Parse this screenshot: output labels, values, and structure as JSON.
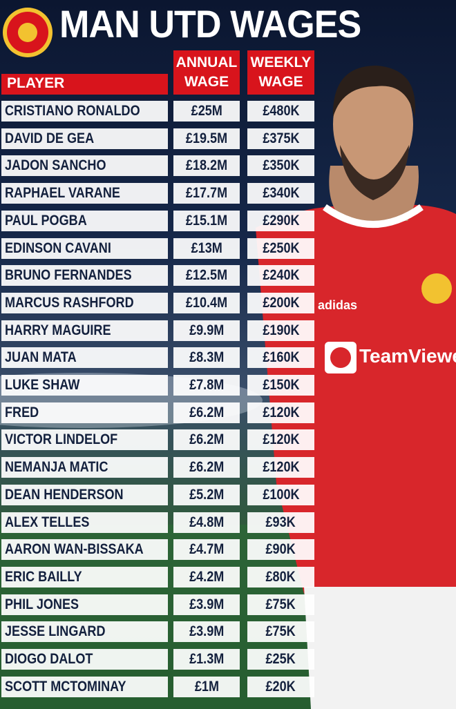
{
  "title": "MAN UTD WAGES",
  "table": {
    "header": [
      "PLAYER",
      "ANNUAL WAGE",
      "WEEKLY WAGE"
    ],
    "rows": [
      [
        "CRISTIANO RONALDO",
        "£25M",
        "£480K"
      ],
      [
        "DAVID DE GEA",
        "£19.5M",
        "£375K"
      ],
      [
        "JADON SANCHO",
        "£18.2M",
        "£350K"
      ],
      [
        "RAPHAEL VARANE",
        "£17.7M",
        "£340K"
      ],
      [
        "PAUL POGBA",
        "£15.1M",
        "£290K"
      ],
      [
        "EDINSON CAVANI",
        "£13M",
        "£250K"
      ],
      [
        "BRUNO FERNANDES",
        "£12.5M",
        "£240K"
      ],
      [
        "MARCUS RASHFORD",
        "£10.4M",
        "£200K"
      ],
      [
        "HARRY MAGUIRE",
        "£9.9M",
        "£190K"
      ],
      [
        "JUAN MATA",
        "£8.3M",
        "£160K"
      ],
      [
        "LUKE SHAW",
        "£7.8M",
        "£150K"
      ],
      [
        "FRED",
        "£6.2M",
        "£120K"
      ],
      [
        "VICTOR LINDELOF",
        "£6.2M",
        "£120K"
      ],
      [
        "NEMANJA MATIC",
        "£6.2M",
        "£120K"
      ],
      [
        "DEAN HENDERSON",
        "£5.2M",
        "£100K"
      ],
      [
        "ALEX TELLES",
        "£4.8M",
        "£93K"
      ],
      [
        "AARON WAN-BISSAKA",
        "£4.7M",
        "£90K"
      ],
      [
        "ERIC BAILLY",
        "£4.2M",
        "£80K"
      ],
      [
        "PHIL JONES",
        "£3.9M",
        "£75K"
      ],
      [
        "JESSE LINGARD",
        "£3.9M",
        "£75K"
      ],
      [
        "DIOGO DALOT",
        "£1.3M",
        "£25K"
      ],
      [
        "SCOTT MCTOMINAY",
        "£1M",
        "£20K"
      ]
    ]
  }
}
